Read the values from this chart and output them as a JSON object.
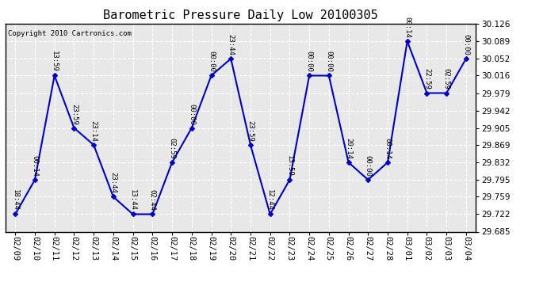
{
  "title": "Barometric Pressure Daily Low 20100305",
  "copyright": "Copyright 2010 Cartronics.com",
  "dates": [
    "02/09",
    "02/10",
    "02/11",
    "02/12",
    "02/13",
    "02/14",
    "02/15",
    "02/16",
    "02/17",
    "02/18",
    "02/19",
    "02/20",
    "02/21",
    "02/22",
    "02/23",
    "02/24",
    "02/25",
    "02/26",
    "02/27",
    "02/28",
    "03/01",
    "03/02",
    "03/03",
    "03/04"
  ],
  "values": [
    29.722,
    29.795,
    30.016,
    29.905,
    29.869,
    29.759,
    29.722,
    29.722,
    29.832,
    29.905,
    30.016,
    30.052,
    29.869,
    29.722,
    29.795,
    30.016,
    30.016,
    29.832,
    29.795,
    29.832,
    30.089,
    29.979,
    29.979,
    30.052
  ],
  "labels": [
    "18:44",
    "00:14",
    "13:59",
    "23:59",
    "23:14",
    "23:44",
    "13:44",
    "02:44",
    "02:59",
    "00:00",
    "00:00",
    "23:44",
    "23:59",
    "12:44",
    "13:59",
    "00:00",
    "00:00",
    "20:14",
    "00:00",
    "00:14",
    "00:14",
    "22:59",
    "02:59",
    "00:00"
  ],
  "line_color": "#0000CC",
  "marker_color": "#0000CC",
  "bg_color": "#FFFFFF",
  "plot_bg_color": "#E8E8E8",
  "grid_color": "#FFFFFF",
  "ylim": [
    29.685,
    30.126
  ],
  "yticks": [
    29.685,
    29.722,
    29.759,
    29.795,
    29.832,
    29.869,
    29.905,
    29.942,
    29.979,
    30.016,
    30.052,
    30.089,
    30.126
  ],
  "title_fontsize": 11,
  "label_fontsize": 6.5,
  "tick_fontsize": 7.5,
  "copyright_fontsize": 6.5
}
